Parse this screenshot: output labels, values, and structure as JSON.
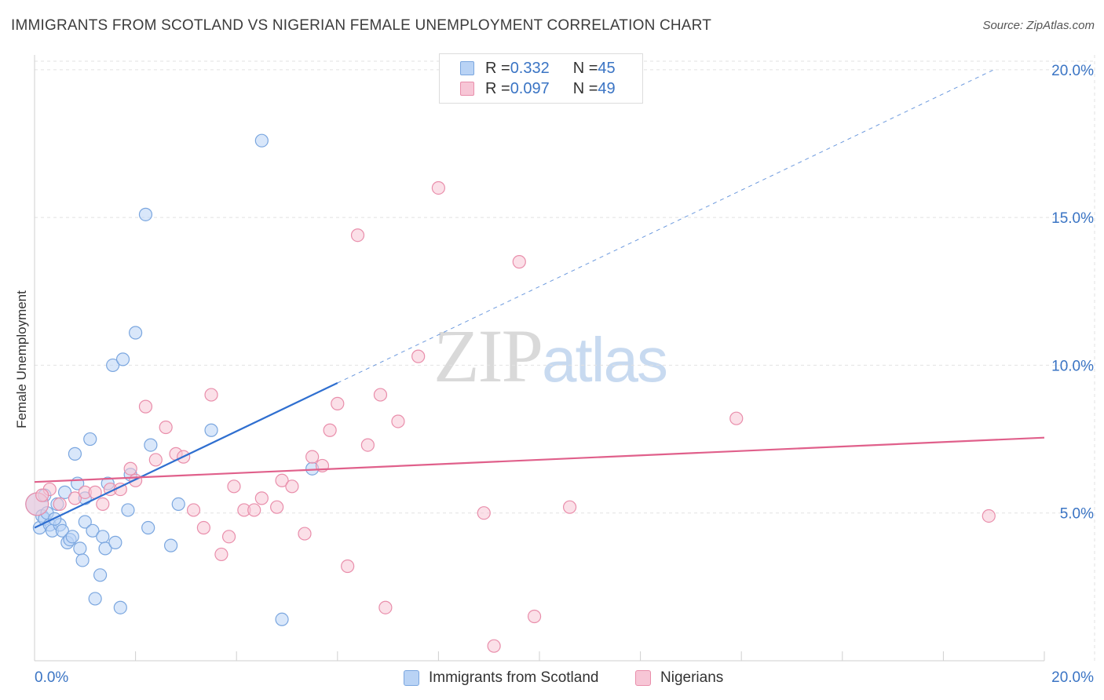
{
  "header": {
    "title": "IMMIGRANTS FROM SCOTLAND VS NIGERIAN FEMALE UNEMPLOYMENT CORRELATION CHART",
    "source": "Source: ZipAtlas.com"
  },
  "watermark": {
    "zip": "ZIP",
    "atlas": "atlas"
  },
  "legend": {
    "series1": {
      "r_label": "R = ",
      "r_value": "0.332",
      "n_label": "N = ",
      "n_value": "45"
    },
    "series2": {
      "r_label": "R = ",
      "r_value": "0.097",
      "n_label": "N = ",
      "n_value": "49"
    }
  },
  "colors": {
    "blue_fill": "#b9d3f5",
    "blue_stroke": "#7aa6df",
    "blue_line": "#2f6fd0",
    "pink_fill": "#f7c6d6",
    "pink_stroke": "#e98eab",
    "pink_line": "#e0608b",
    "grid": "#e2e2e2",
    "axis_text": "#3a74c4"
  },
  "chart_data": {
    "type": "scatter",
    "title": "IMMIGRANTS FROM SCOTLAND VS NIGERIAN FEMALE UNEMPLOYMENT CORRELATION CHART",
    "xlabel": "",
    "ylabel": "Female Unemployment",
    "xlim": [
      0,
      20
    ],
    "ylim": [
      0,
      20.5
    ],
    "x_tick_labels": [
      "0.0%",
      "20.0%"
    ],
    "y_ticks": [
      5,
      10,
      15,
      20
    ],
    "y_tick_labels": [
      "5.0%",
      "10.0%",
      "15.0%",
      "20.0%"
    ],
    "grid": true,
    "legend_position": "top-center",
    "series": [
      {
        "name": "Immigrants from Scotland",
        "color": "#7aa6df",
        "regression": {
          "x0": 0,
          "y0": 4.5,
          "x1": 6.0,
          "y1": 9.4,
          "extend_to_x": 19.0,
          "extend_to_y": 20.0
        },
        "points": [
          [
            0.05,
            5.3,
            1.8
          ],
          [
            0.1,
            4.5,
            1
          ],
          [
            0.15,
            4.9,
            1
          ],
          [
            0.2,
            4.8,
            1
          ],
          [
            0.25,
            5.0,
            1
          ],
          [
            0.3,
            4.6,
            1
          ],
          [
            0.35,
            4.4,
            1
          ],
          [
            0.45,
            5.3,
            1
          ],
          [
            0.5,
            4.6,
            1
          ],
          [
            0.55,
            4.4,
            1
          ],
          [
            0.6,
            5.7,
            1
          ],
          [
            0.65,
            4.0,
            1
          ],
          [
            0.7,
            4.1,
            1
          ],
          [
            0.75,
            4.2,
            1
          ],
          [
            0.8,
            7.0,
            1
          ],
          [
            0.85,
            6.0,
            1
          ],
          [
            0.9,
            3.8,
            1
          ],
          [
            0.95,
            3.4,
            1
          ],
          [
            1.0,
            4.7,
            1
          ],
          [
            1.1,
            7.5,
            1
          ],
          [
            1.15,
            4.4,
            1
          ],
          [
            1.2,
            2.1,
            1
          ],
          [
            1.3,
            2.9,
            1
          ],
          [
            1.35,
            4.2,
            1
          ],
          [
            1.4,
            3.8,
            1
          ],
          [
            1.45,
            6.0,
            1
          ],
          [
            1.55,
            10.0,
            1
          ],
          [
            1.6,
            4.0,
            1
          ],
          [
            1.7,
            1.8,
            1
          ],
          [
            1.75,
            10.2,
            1
          ],
          [
            1.85,
            5.1,
            1
          ],
          [
            1.9,
            6.3,
            1
          ],
          [
            2.0,
            11.1,
            1
          ],
          [
            2.2,
            15.1,
            1
          ],
          [
            2.25,
            4.5,
            1
          ],
          [
            2.3,
            7.3,
            1
          ],
          [
            2.7,
            3.9,
            1
          ],
          [
            2.85,
            5.3,
            1
          ],
          [
            3.5,
            7.8,
            1
          ],
          [
            4.5,
            17.6,
            1
          ],
          [
            4.9,
            1.4,
            1
          ],
          [
            5.5,
            6.5,
            1
          ],
          [
            0.2,
            5.6,
            1
          ],
          [
            1.0,
            5.5,
            1
          ],
          [
            0.4,
            4.8,
            1
          ]
        ]
      },
      {
        "name": "Nigerians",
        "color": "#e98eab",
        "regression": {
          "x0": 0,
          "y0": 6.05,
          "x1": 20,
          "y1": 7.55
        },
        "points": [
          [
            0.05,
            5.3,
            1.8
          ],
          [
            0.3,
            5.8,
            1
          ],
          [
            0.5,
            5.3,
            1
          ],
          [
            0.8,
            5.5,
            1
          ],
          [
            1.0,
            5.7,
            1
          ],
          [
            1.2,
            5.7,
            1
          ],
          [
            1.35,
            5.3,
            1
          ],
          [
            1.5,
            5.8,
            1
          ],
          [
            1.7,
            5.8,
            1
          ],
          [
            1.9,
            6.5,
            1
          ],
          [
            2.0,
            6.1,
            1
          ],
          [
            2.2,
            8.6,
            1
          ],
          [
            2.4,
            6.8,
            1
          ],
          [
            2.6,
            7.9,
            1
          ],
          [
            2.8,
            7.0,
            1
          ],
          [
            2.95,
            6.9,
            1
          ],
          [
            3.15,
            5.1,
            1
          ],
          [
            3.35,
            4.5,
            1
          ],
          [
            3.5,
            9.0,
            1
          ],
          [
            3.7,
            3.6,
            1
          ],
          [
            3.85,
            4.2,
            1
          ],
          [
            3.95,
            5.9,
            1
          ],
          [
            4.15,
            5.1,
            1
          ],
          [
            4.35,
            5.1,
            1
          ],
          [
            4.5,
            5.5,
            1
          ],
          [
            4.8,
            5.2,
            1
          ],
          [
            4.9,
            6.1,
            1
          ],
          [
            5.1,
            5.9,
            1
          ],
          [
            5.35,
            4.3,
            1
          ],
          [
            5.5,
            6.9,
            1
          ],
          [
            5.7,
            6.6,
            1
          ],
          [
            5.85,
            7.8,
            1
          ],
          [
            6.0,
            8.7,
            1
          ],
          [
            6.2,
            3.2,
            1
          ],
          [
            6.4,
            14.4,
            1
          ],
          [
            6.6,
            7.3,
            1
          ],
          [
            6.85,
            9.0,
            1
          ],
          [
            6.95,
            1.8,
            1
          ],
          [
            7.2,
            8.1,
            1
          ],
          [
            7.6,
            10.3,
            1
          ],
          [
            8.0,
            16.0,
            1
          ],
          [
            8.9,
            5.0,
            1
          ],
          [
            9.1,
            0.5,
            1
          ],
          [
            9.6,
            13.5,
            1
          ],
          [
            9.9,
            1.5,
            1
          ],
          [
            10.6,
            5.2,
            1
          ],
          [
            13.9,
            8.2,
            1
          ],
          [
            18.9,
            4.9,
            1
          ],
          [
            0.15,
            5.6,
            1
          ]
        ]
      }
    ]
  },
  "bottom_legend": {
    "series1": "Immigrants from Scotland",
    "series2": "Nigerians"
  }
}
